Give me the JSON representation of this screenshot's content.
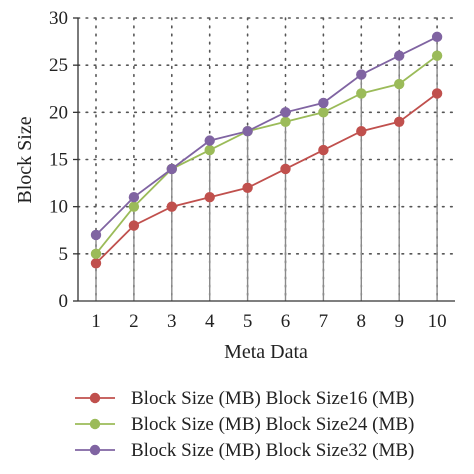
{
  "chart_data": {
    "type": "line",
    "title": "",
    "xlabel": "Meta Data",
    "ylabel": "Block Size",
    "x": [
      1,
      2,
      3,
      4,
      5,
      6,
      7,
      8,
      9,
      10
    ],
    "xlim": [
      1,
      10
    ],
    "ylim": [
      0,
      30
    ],
    "yticks": [
      0,
      5,
      10,
      15,
      20,
      25,
      30
    ],
    "grid": "dotted horizontal and vertical",
    "drop_lines": true,
    "legend_position": "bottom",
    "series": [
      {
        "name": "Block Size (MB) Block Size16 (MB)",
        "color": "#c0504d",
        "values": [
          4,
          8,
          10,
          11,
          12,
          14,
          16,
          18,
          19,
          22
        ]
      },
      {
        "name": "Block Size (MB) Block Size24 (MB)",
        "color": "#9bbb59",
        "values": [
          5,
          10,
          14,
          16,
          18,
          19,
          20,
          22,
          23,
          26
        ]
      },
      {
        "name": "Block Size (MB) Block Size32 (MB)",
        "color": "#8064a2",
        "values": [
          7,
          11,
          14,
          17,
          18,
          20,
          21,
          24,
          26,
          28
        ]
      }
    ]
  }
}
